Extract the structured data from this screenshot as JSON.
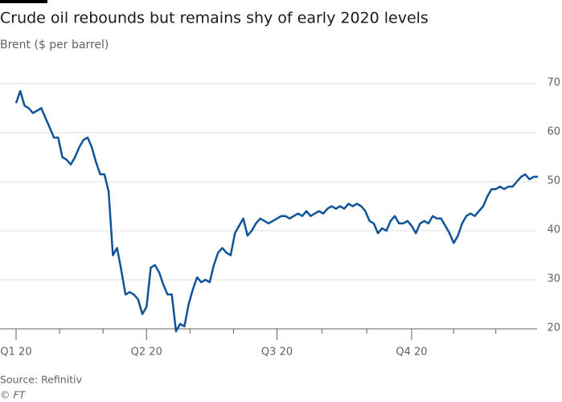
{
  "chart_data": {
    "type": "line",
    "title": "Crude oil rebounds but remains shy of early 2020 levels",
    "subtitle": "Brent ($ per barrel)",
    "source": "Source: Refinitiv",
    "credit": "© FT",
    "categories": [
      "Q1 20",
      null,
      null,
      null,
      null,
      null,
      null,
      null,
      null,
      null,
      null,
      null,
      null,
      null,
      null,
      null,
      null,
      null,
      null,
      null,
      null,
      null,
      null,
      null,
      null,
      null,
      null,
      null,
      null,
      null,
      null,
      "Q2 20",
      null,
      null,
      null,
      null,
      null,
      null,
      null,
      null,
      null,
      null,
      null,
      null,
      null,
      null,
      null,
      null,
      null,
      null,
      null,
      null,
      null,
      null,
      null,
      null,
      null,
      null,
      null,
      null,
      null,
      null,
      "Q3 20",
      null,
      null,
      null,
      null,
      null,
      null,
      null,
      null,
      null,
      null,
      null,
      null,
      null,
      null,
      null,
      null,
      null,
      null,
      null,
      null,
      null,
      null,
      null,
      null,
      null,
      null,
      null,
      null,
      null,
      null,
      null,
      "Q4 20",
      null,
      null,
      null,
      null,
      null,
      null,
      null,
      null,
      null,
      null,
      null,
      null,
      null,
      null,
      null,
      null,
      null,
      null,
      null,
      null,
      null,
      null,
      null,
      null,
      null,
      null,
      null,
      null,
      null,
      null
    ],
    "series": [
      {
        "name": "Brent",
        "color": "#0f5499",
        "values": [
          66,
          68.5,
          65.5,
          65,
          64,
          64.5,
          65,
          63,
          61,
          59,
          59,
          55,
          54.5,
          53.5,
          55,
          57,
          58.5,
          59,
          57,
          54,
          51.5,
          51.5,
          48,
          35,
          36.5,
          32,
          27,
          27.5,
          27,
          26,
          23,
          24.5,
          32.5,
          33,
          31.5,
          29,
          27,
          27,
          19.5,
          21,
          20.5,
          25,
          28,
          30.5,
          29.5,
          30,
          29.5,
          33,
          35.5,
          36.5,
          35.5,
          35,
          39.5,
          41,
          42.5,
          39,
          40,
          41.5,
          42.5,
          42,
          41.5,
          42,
          42.5,
          43,
          43,
          42.5,
          43,
          43.5,
          43,
          44,
          43,
          43.5,
          44,
          43.5,
          44.5,
          45,
          44.5,
          45,
          44.5,
          45.5,
          45,
          45.5,
          45,
          44,
          42,
          41.5,
          39.5,
          40.5,
          40,
          42,
          43,
          41.5,
          41.5,
          42,
          41,
          39.5,
          41.5,
          42,
          41.5,
          43,
          42.5,
          42.5,
          41,
          39.5,
          37.5,
          39,
          41.5,
          43,
          43.5,
          43,
          44,
          45,
          47,
          48.5,
          48.5,
          49,
          48.5,
          49,
          49,
          50,
          51,
          51.5,
          50.5,
          51,
          51
        ]
      }
    ],
    "ylim": [
      20,
      70
    ],
    "yticks": [
      20,
      30,
      40,
      50,
      60,
      70
    ],
    "grid": true
  }
}
